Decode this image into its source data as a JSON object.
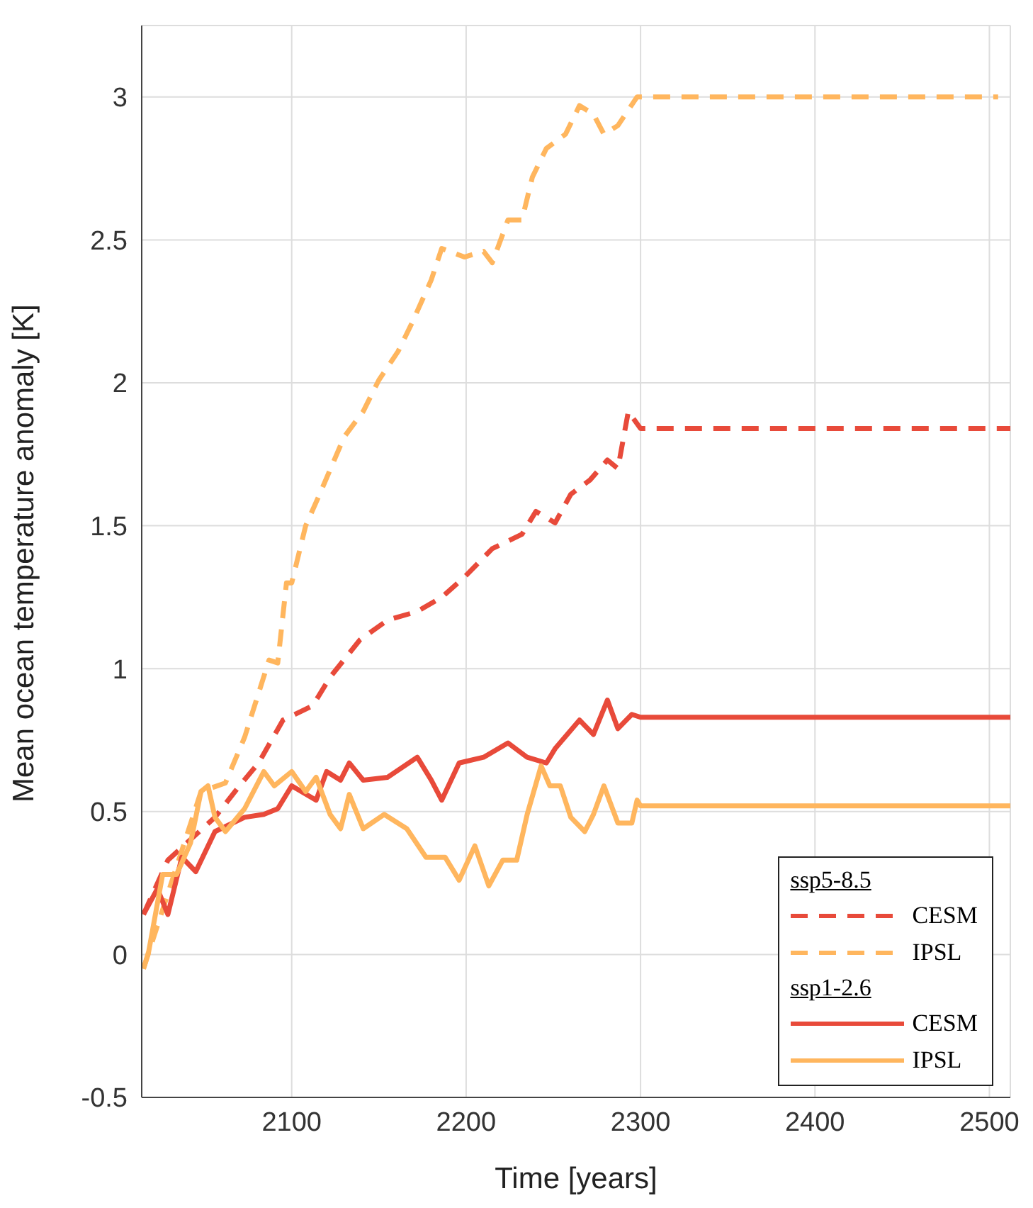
{
  "chart_data": {
    "type": "line",
    "xlabel": "Time [years]",
    "ylabel": "Mean ocean temperature anomaly [K]",
    "xlim": [
      2014,
      2512
    ],
    "ylim": [
      -0.5,
      3.25
    ],
    "xticks": [
      2100,
      2200,
      2300,
      2400,
      2500
    ],
    "yticks": [
      -0.5,
      0,
      0.5,
      1,
      1.5,
      2,
      2.5,
      3
    ],
    "grid": true,
    "legend": "bottom right",
    "annotations": [
      "ssp5-8.5",
      "ssp1-2.6"
    ],
    "series": [
      {
        "name": "CESM",
        "color": "#e84a3a",
        "line_style": "dashed",
        "x": [
          2015,
          2029,
          2056,
          2070,
          2081,
          2095,
          2112,
          2122,
          2139,
          2155,
          2172,
          2186,
          2199,
          2215,
          2232,
          2240,
          2251,
          2260,
          2271,
          2281,
          2287,
          2293,
          2300,
          2512
        ],
        "values": [
          0.14,
          0.33,
          0.48,
          0.59,
          0.67,
          0.82,
          0.87,
          0.97,
          1.1,
          1.17,
          1.2,
          1.25,
          1.32,
          1.42,
          1.47,
          1.55,
          1.51,
          1.61,
          1.66,
          1.73,
          1.7,
          1.9,
          1.84,
          1.84
        ]
      },
      {
        "name": "IPSL",
        "color": "#ffb65e",
        "line_style": "dashed",
        "x": [
          2015,
          2048,
          2062,
          2073,
          2087,
          2092,
          2097,
          2100,
          2108,
          2116,
          2130,
          2141,
          2150,
          2161,
          2169,
          2180,
          2186,
          2199,
          2210,
          2215,
          2224,
          2232,
          2238,
          2246,
          2257,
          2265,
          2273,
          2279,
          2287,
          2298,
          2505
        ],
        "values": [
          -0.05,
          0.57,
          0.6,
          0.76,
          1.03,
          1.02,
          1.3,
          1.3,
          1.5,
          1.61,
          1.81,
          1.9,
          2.01,
          2.11,
          2.21,
          2.36,
          2.47,
          2.44,
          2.46,
          2.42,
          2.57,
          2.57,
          2.72,
          2.82,
          2.87,
          2.97,
          2.94,
          2.87,
          2.9,
          3.0,
          3.0
        ]
      },
      {
        "name": "CESM",
        "color": "#e84a3a",
        "line_style": "solid",
        "x": [
          2015,
          2023,
          2029,
          2037,
          2045,
          2056,
          2073,
          2084,
          2092,
          2100,
          2114,
          2120,
          2128,
          2133,
          2141,
          2155,
          2172,
          2180,
          2186,
          2196,
          2210,
          2224,
          2235,
          2246,
          2251,
          2265,
          2273,
          2281,
          2287,
          2295,
          2300,
          2512
        ],
        "values": [
          0.14,
          0.23,
          0.14,
          0.34,
          0.29,
          0.43,
          0.48,
          0.49,
          0.51,
          0.59,
          0.54,
          0.64,
          0.61,
          0.67,
          0.61,
          0.62,
          0.69,
          0.61,
          0.54,
          0.67,
          0.69,
          0.74,
          0.69,
          0.67,
          0.72,
          0.82,
          0.77,
          0.89,
          0.79,
          0.84,
          0.83,
          0.83
        ]
      },
      {
        "name": "IPSL",
        "color": "#ffb65e",
        "line_style": "solid",
        "x": [
          2015,
          2018,
          2026,
          2034,
          2042,
          2048,
          2052,
          2056,
          2062,
          2073,
          2084,
          2090,
          2100,
          2108,
          2114,
          2122,
          2128,
          2133,
          2141,
          2153,
          2166,
          2177,
          2188,
          2196,
          2205,
          2213,
          2221,
          2229,
          2235,
          2243,
          2248,
          2254,
          2260,
          2268,
          2273,
          2279,
          2287,
          2295,
          2298,
          2300,
          2512
        ],
        "values": [
          -0.05,
          0.01,
          0.28,
          0.28,
          0.39,
          0.57,
          0.59,
          0.48,
          0.43,
          0.51,
          0.64,
          0.59,
          0.64,
          0.57,
          0.62,
          0.49,
          0.44,
          0.56,
          0.44,
          0.49,
          0.44,
          0.34,
          0.34,
          0.26,
          0.38,
          0.24,
          0.33,
          0.33,
          0.49,
          0.66,
          0.59,
          0.59,
          0.48,
          0.43,
          0.49,
          0.59,
          0.46,
          0.46,
          0.54,
          0.52,
          0.52
        ]
      }
    ]
  }
}
